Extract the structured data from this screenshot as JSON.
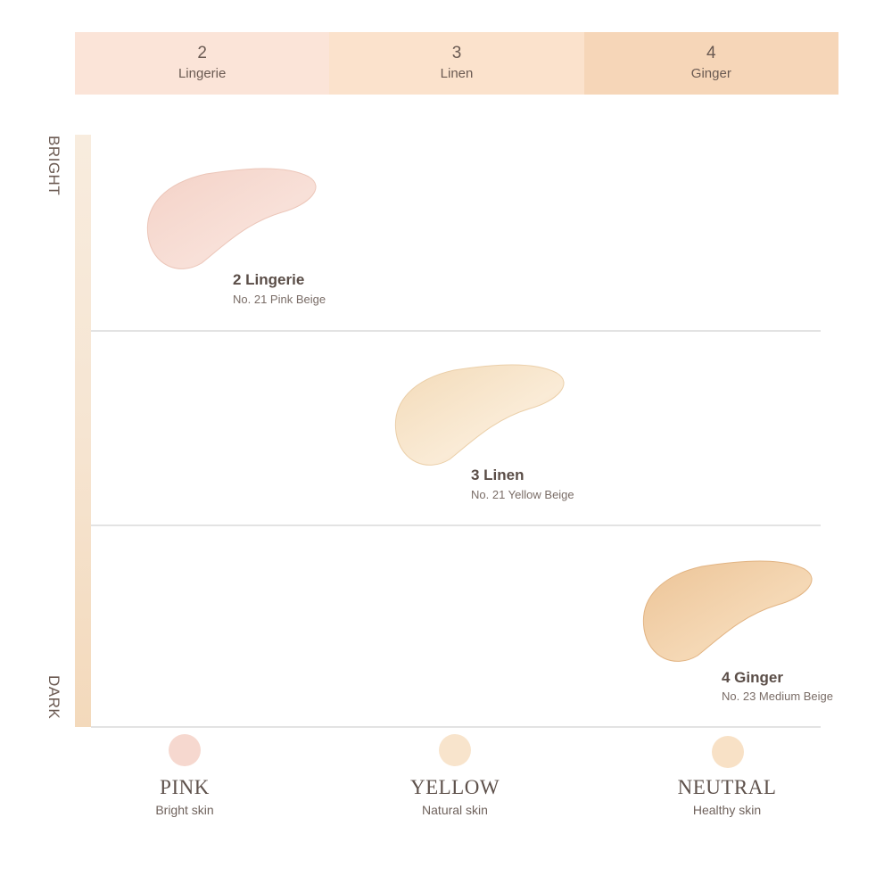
{
  "shade_bar": [
    {
      "number": "2",
      "name": "Lingerie",
      "color": "#fbe4d8"
    },
    {
      "number": "3",
      "name": "Linen",
      "color": "#fbe2cc"
    },
    {
      "number": "4",
      "name": "Ginger",
      "color": "#f6d6b8"
    }
  ],
  "axis": {
    "top_label": "BRIGHT",
    "bottom_label": "DARK"
  },
  "swatches": [
    {
      "title": "2 Lingerie",
      "subtitle": "No. 21 Pink Beige",
      "color": "#f6d7cd",
      "edge": "#eec3b6"
    },
    {
      "title": "3 Linen",
      "subtitle": "No. 21 Yellow Beige",
      "color": "#f8e3c6",
      "edge": "#efd2ac"
    },
    {
      "title": "4 Ginger",
      "subtitle": "No. 23 Medium Beige",
      "color": "#f2d0a7",
      "edge": "#e6b989"
    }
  ],
  "undertones": [
    {
      "title": "PINK",
      "desc": "Bright skin",
      "color": "#f6d8cf"
    },
    {
      "title": "YELLOW",
      "desc": "Natural skin",
      "color": "#f8e4cc"
    },
    {
      "title": "NEUTRAL",
      "desc": "Healthy skin",
      "color": "#f8e1c6"
    }
  ]
}
